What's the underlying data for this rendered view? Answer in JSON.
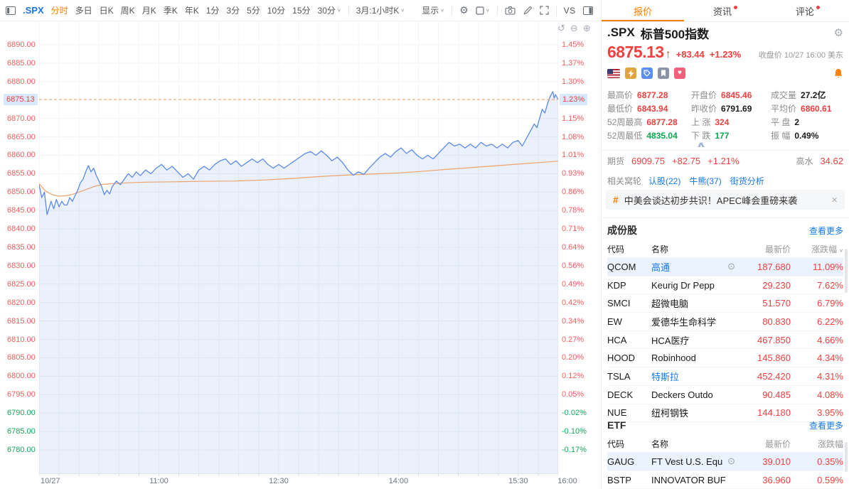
{
  "icons": {
    "close": "×",
    "chevron_down": "∨",
    "chevron_up": "∧",
    "arrow_up": "↑",
    "undo": "↺",
    "zoom_out": "⊖",
    "zoom_in": "⊕",
    "target": "⊙",
    "hash": "#",
    "heart": "♥",
    "gear": "⚙"
  },
  "toolbar": {
    "symbol": ".SPX",
    "periods": [
      {
        "label": "分时",
        "active": true
      },
      {
        "label": "多日"
      },
      {
        "label": "日K"
      },
      {
        "label": "周K"
      },
      {
        "label": "月K"
      },
      {
        "label": "季K"
      },
      {
        "label": "年K"
      },
      {
        "label": "1分"
      },
      {
        "label": "3分"
      },
      {
        "label": "5分"
      },
      {
        "label": "10分"
      },
      {
        "label": "15分"
      }
    ],
    "dropdown_30min": "30分",
    "kline_selector": "3月:1小时K",
    "display_label": "显示",
    "vs_label": "VS",
    "icon_names": [
      "settings-icon",
      "indicator-box-icon",
      "camera-icon",
      "draw-icon",
      "fullscreen-icon",
      "panel-right-icon"
    ]
  },
  "chart_data": {
    "type": "line",
    "symbol": ".SPX",
    "title": ".SPX 标普500指数 分时图",
    "session_minutes": 390,
    "x_ticks": [
      {
        "minute": 0,
        "label": "10/27"
      },
      {
        "minute": 90,
        "label": "11:00"
      },
      {
        "minute": 180,
        "label": "12:30"
      },
      {
        "minute": 270,
        "label": "14:00"
      },
      {
        "minute": 360,
        "label": "15:30"
      },
      {
        "minute": 390,
        "label": "16:00"
      }
    ],
    "y_axis": {
      "price_top": 6890,
      "price_step": 5,
      "rows": 23,
      "prev_close": 6791.69,
      "current_row": 3,
      "price_labels": [
        "6890.00",
        "6885.00",
        "6880.00",
        "6875.13",
        "6870.00",
        "6865.00",
        "6860.00",
        "6855.00",
        "6850.00",
        "6845.00",
        "6840.00",
        "6835.00",
        "6830.00",
        "6825.00",
        "6820.00",
        "6815.00",
        "6810.00",
        "6805.00",
        "6800.00",
        "6795.00",
        "6790.00",
        "6785.00",
        "6780.00"
      ],
      "pct_labels": [
        "1.45%",
        "1.37%",
        "1.30%",
        "1.23%",
        "1.15%",
        "1.08%",
        "1.01%",
        "0.93%",
        "0.86%",
        "0.78%",
        "0.71%",
        "0.64%",
        "0.56%",
        "0.49%",
        "0.42%",
        "0.34%",
        "0.27%",
        "0.20%",
        "0.12%",
        "0.05%",
        "-0.02%",
        "-0.10%",
        "-0.17%"
      ]
    },
    "current_price": 6875.13,
    "current_pct": "1.23%",
    "colors": {
      "price_line": "#5C8AE6",
      "avg_line": "#EFA26B",
      "dashed_line": "#F2A159",
      "area_fill": "#5C8AE6",
      "up": "#F0403F",
      "down": "#0CA750"
    },
    "series": {
      "price": [
        [
          0,
          6852.0
        ],
        [
          2,
          6848.5
        ],
        [
          4,
          6850.0
        ],
        [
          6,
          6843.9
        ],
        [
          9,
          6847.5
        ],
        [
          11,
          6845.5
        ],
        [
          13,
          6848.0
        ],
        [
          15,
          6846.0
        ],
        [
          17,
          6847.5
        ],
        [
          19,
          6846.5
        ],
        [
          21,
          6846.5
        ],
        [
          23,
          6848.5
        ],
        [
          25,
          6847.5
        ],
        [
          27,
          6849.0
        ],
        [
          29,
          6850.5
        ],
        [
          31,
          6852.5
        ],
        [
          33,
          6853.5
        ],
        [
          35,
          6855.5
        ],
        [
          37,
          6857.2
        ],
        [
          39,
          6855.5
        ],
        [
          41,
          6856.5
        ],
        [
          43,
          6854.5
        ],
        [
          45,
          6853.0
        ],
        [
          47,
          6851.5
        ],
        [
          49,
          6849.3
        ],
        [
          51,
          6850.5
        ],
        [
          53,
          6849.5
        ],
        [
          55,
          6851.5
        ],
        [
          58,
          6853.0
        ],
        [
          61,
          6852.0
        ],
        [
          64,
          6853.5
        ],
        [
          67,
          6855.0
        ],
        [
          70,
          6854.0
        ],
        [
          73,
          6855.5
        ],
        [
          76,
          6854.5
        ],
        [
          80,
          6856.0
        ],
        [
          84,
          6855.0
        ],
        [
          88,
          6856.5
        ],
        [
          92,
          6857.5
        ],
        [
          96,
          6856.0
        ],
        [
          100,
          6857.0
        ],
        [
          104,
          6855.5
        ],
        [
          108,
          6854.0
        ],
        [
          112,
          6855.0
        ],
        [
          116,
          6853.5
        ],
        [
          120,
          6856.0
        ],
        [
          124,
          6857.0
        ],
        [
          128,
          6856.0
        ],
        [
          132,
          6857.5
        ],
        [
          136,
          6858.5
        ],
        [
          140,
          6859.0
        ],
        [
          144,
          6857.5
        ],
        [
          148,
          6858.5
        ],
        [
          152,
          6857.0
        ],
        [
          156,
          6858.0
        ],
        [
          160,
          6859.0
        ],
        [
          164,
          6858.0
        ],
        [
          168,
          6859.0
        ],
        [
          172,
          6857.5
        ],
        [
          176,
          6856.5
        ],
        [
          180,
          6857.5
        ],
        [
          184,
          6856.5
        ],
        [
          188,
          6857.5
        ],
        [
          192,
          6858.5
        ],
        [
          196,
          6859.5
        ],
        [
          200,
          6860.5
        ],
        [
          204,
          6861.0
        ],
        [
          208,
          6860.0
        ],
        [
          212,
          6861.2
        ],
        [
          216,
          6860.0
        ],
        [
          220,
          6858.5
        ],
        [
          224,
          6859.5
        ],
        [
          228,
          6858.0
        ],
        [
          232,
          6856.0
        ],
        [
          236,
          6854.6
        ],
        [
          240,
          6855.5
        ],
        [
          244,
          6854.8
        ],
        [
          248,
          6856.5
        ],
        [
          252,
          6858.0
        ],
        [
          256,
          6859.5
        ],
        [
          260,
          6860.5
        ],
        [
          264,
          6859.5
        ],
        [
          268,
          6861.0
        ],
        [
          272,
          6862.0
        ],
        [
          276,
          6860.5
        ],
        [
          280,
          6861.5
        ],
        [
          284,
          6860.0
        ],
        [
          288,
          6859.0
        ],
        [
          292,
          6860.0
        ],
        [
          296,
          6859.0
        ],
        [
          300,
          6860.5
        ],
        [
          304,
          6862.0
        ],
        [
          308,
          6863.5
        ],
        [
          312,
          6862.5
        ],
        [
          316,
          6863.0
        ],
        [
          320,
          6862.0
        ],
        [
          324,
          6863.0
        ],
        [
          328,
          6862.0
        ],
        [
          332,
          6863.5
        ],
        [
          336,
          6862.5
        ],
        [
          340,
          6863.0
        ],
        [
          344,
          6862.0
        ],
        [
          348,
          6863.0
        ],
        [
          352,
          6862.0
        ],
        [
          356,
          6863.5
        ],
        [
          360,
          6864.0
        ],
        [
          363,
          6862.5
        ],
        [
          366,
          6864.5
        ],
        [
          369,
          6866.5
        ],
        [
          372,
          6868.5
        ],
        [
          374,
          6867.5
        ],
        [
          376,
          6870.0
        ],
        [
          378,
          6872.5
        ],
        [
          380,
          6871.5
        ],
        [
          382,
          6874.0
        ],
        [
          384,
          6876.0
        ],
        [
          386,
          6877.3
        ],
        [
          387,
          6875.5
        ],
        [
          388,
          6876.5
        ],
        [
          390,
          6875.13
        ]
      ],
      "avg": [
        [
          0,
          6852.3
        ],
        [
          5,
          6850.2
        ],
        [
          10,
          6849.3
        ],
        [
          15,
          6848.9
        ],
        [
          20,
          6849.0
        ],
        [
          25,
          6849.4
        ],
        [
          30,
          6850.0
        ],
        [
          36,
          6850.8
        ],
        [
          42,
          6851.6
        ],
        [
          48,
          6852.1
        ],
        [
          55,
          6852.3
        ],
        [
          65,
          6852.5
        ],
        [
          80,
          6852.7
        ],
        [
          100,
          6852.8
        ],
        [
          120,
          6852.9
        ],
        [
          147,
          6853.0
        ],
        [
          170,
          6853.3
        ],
        [
          190,
          6853.7
        ],
        [
          210,
          6854.2
        ],
        [
          230,
          6854.6
        ],
        [
          250,
          6854.9
        ],
        [
          270,
          6855.2
        ],
        [
          286,
          6855.6
        ],
        [
          300,
          6856.0
        ],
        [
          315,
          6856.4
        ],
        [
          330,
          6856.8
        ],
        [
          345,
          6857.2
        ],
        [
          360,
          6857.6
        ],
        [
          375,
          6858.0
        ],
        [
          390,
          6858.4
        ]
      ]
    }
  },
  "quote": {
    "tabs": [
      {
        "label": "报价",
        "active": true
      },
      {
        "label": "资讯",
        "dot": true
      },
      {
        "label": "评论",
        "dot": true
      }
    ],
    "symbol": ".SPX",
    "name": "标普500指数",
    "price": "6875.13",
    "change": "+83.44",
    "change_pct": "+1.23%",
    "session": "收盘价 10/27 16:00 美东",
    "badge_icons": [
      "us-flag-icon",
      "lightning-icon",
      "tag-icon",
      "bookmark-icon",
      "heart-icon",
      "bell-icon"
    ],
    "stats": [
      {
        "label": "最高价",
        "value": "6877.28",
        "color": "red"
      },
      {
        "label": "开盘价",
        "value": "6845.46",
        "color": "red"
      },
      {
        "label": "成交量",
        "value": "27.2亿",
        "color": "dark"
      },
      {
        "label": "最低价",
        "value": "6843.94",
        "color": "red"
      },
      {
        "label": "昨收价",
        "value": "6791.69",
        "color": "dark"
      },
      {
        "label": "平均价",
        "value": "6860.61",
        "color": "red"
      },
      {
        "label": "52周最高",
        "value": "6877.28",
        "color": "red"
      },
      {
        "label": "上 涨",
        "value": "324",
        "color": "red"
      },
      {
        "label": "平 盘",
        "value": "2",
        "color": "dark"
      },
      {
        "label": "52周最低",
        "value": "4835.04",
        "color": "green"
      },
      {
        "label": "下 跌",
        "value": "177",
        "color": "green"
      },
      {
        "label": "振 幅",
        "value": "0.49%",
        "color": "dark"
      }
    ],
    "futures": {
      "label": "期货",
      "price": "6909.75",
      "change": "+82.75",
      "pct": "+1.21%",
      "premium_label": "高水",
      "premium": "34.62"
    },
    "warrants": {
      "label": "相关窝轮",
      "links": [
        "认股(22)",
        "牛熊(37)",
        "街货分析"
      ]
    },
    "banner": {
      "text": "中美会谈达初步共识！APEC峰会重磅来袭"
    },
    "constituents": {
      "title": "成份股",
      "more": "查看更多",
      "headers": [
        "代码",
        "名称",
        "最新价",
        "涨跌幅"
      ],
      "rows": [
        {
          "code": "QCOM",
          "name": "高通",
          "name_link": true,
          "price": "187.680",
          "pct": "11.09%",
          "highlight": true,
          "icon": true
        },
        {
          "code": "KDP",
          "name": "Keurig Dr Pepp",
          "price": "29.230",
          "pct": "7.62%"
        },
        {
          "code": "SMCI",
          "name": "超微电脑",
          "price": "51.570",
          "pct": "6.79%"
        },
        {
          "code": "EW",
          "name": "爱德华生命科学",
          "price": "80.830",
          "pct": "6.22%"
        },
        {
          "code": "HCA",
          "name": "HCA医疗",
          "price": "467.850",
          "pct": "4.66%"
        },
        {
          "code": "HOOD",
          "name": "Robinhood",
          "price": "145.860",
          "pct": "4.34%"
        },
        {
          "code": "TSLA",
          "name": "特斯拉",
          "name_link": true,
          "price": "452.420",
          "pct": "4.31%"
        },
        {
          "code": "DECK",
          "name": "Deckers Outdo",
          "price": "90.485",
          "pct": "4.08%"
        },
        {
          "code": "NUE",
          "name": "纽柯钢铁",
          "price": "144.180",
          "pct": "3.95%"
        }
      ]
    },
    "etf": {
      "title": "ETF",
      "more": "查看更多",
      "headers": [
        "代码",
        "名称",
        "最新价",
        "涨跌幅"
      ],
      "rows": [
        {
          "code": "GAUG",
          "name": "FT Vest U.S. Equ",
          "price": "39.010",
          "pct": "0.35%",
          "highlight": true,
          "icon": true
        },
        {
          "code": "BSTP",
          "name": "INNOVATOR BUF",
          "price": "36.960",
          "pct": "0.59%"
        }
      ]
    }
  }
}
